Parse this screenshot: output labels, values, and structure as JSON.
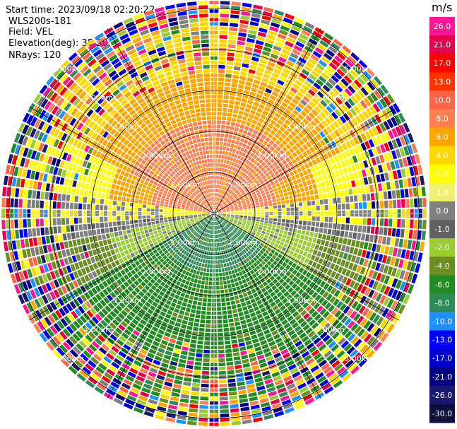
{
  "info": {
    "start_time": "Start time: 2023/09/18 02:20:22",
    "instrument": "WLS200s-181",
    "field": "Field: VEL",
    "elevation": "Elevation(deg): 35.30",
    "nrays": "NRays: 120"
  },
  "chart_data": {
    "type": "polar-ppi",
    "field": "VEL",
    "n_rays": 120,
    "range_rings_km": [
      1,
      2,
      3,
      4,
      5
    ],
    "ring_labels": [
      "1.00km",
      "2.00km",
      "3.00km",
      "4.00km",
      "5.00km"
    ],
    "colorbar": {
      "unit": "m/s",
      "ticks": [
        "26.0",
        "21.0",
        "17.0",
        "13.0",
        "10.0",
        "8.0",
        "6.0",
        "4.0",
        "2.0",
        "1.0",
        "0.0",
        "-1.0",
        "-2.0",
        "-4.0",
        "-6.0",
        "-8.0",
        "-10.0",
        "-13.0",
        "-17.0",
        "-21.0",
        "-26.0",
        "-30.0"
      ],
      "colors": [
        "#ff1493",
        "#e6004c",
        "#ff0000",
        "#ff3300",
        "#ff6347",
        "#ff7f50",
        "#ffa500",
        "#ffd700",
        "#ffff00",
        "#f0f070",
        "#808080",
        "#606060",
        "#9acd32",
        "#6b8e23",
        "#228b22",
        "#2e8b57",
        "#1e90ff",
        "#0000ff",
        "#0000cd",
        "#000080",
        "#191970",
        "#101040"
      ]
    }
  }
}
